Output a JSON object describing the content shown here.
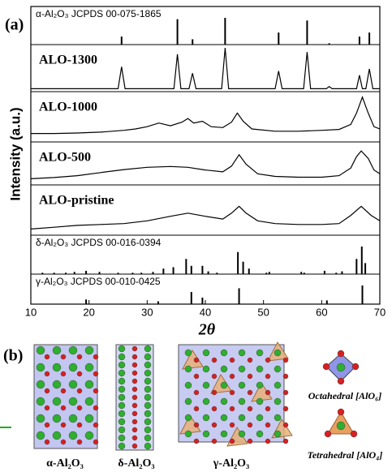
{
  "panel_labels": [
    "(a)",
    "(b)"
  ],
  "chart_data": {
    "type": "xrd-stack",
    "xlabel": "2θ",
    "ylabel": "Intensity (a.u.)",
    "xlim": [
      10,
      70
    ],
    "xticks": [
      10,
      20,
      30,
      40,
      50,
      60,
      70
    ],
    "ylim": [
      0,
      100
    ],
    "series": [
      {
        "name": "α-Al₂O₃ JCPDS 00-075-1865",
        "type": "stick",
        "color": "#000000",
        "x": [
          25.6,
          35.2,
          37.8,
          43.4,
          52.6,
          57.5,
          61.3,
          66.5,
          68.2
        ],
        "values": [
          30,
          95,
          20,
          100,
          45,
          90,
          5,
          30,
          45
        ]
      },
      {
        "name": "ALO-1300",
        "type": "line",
        "color": "#000000",
        "x": [
          10,
          25.0,
          25.6,
          26.2,
          34.6,
          35.2,
          35.8,
          37.2,
          37.8,
          38.4,
          42.8,
          43.4,
          44.0,
          52.0,
          52.6,
          53.2,
          56.9,
          57.5,
          58.1,
          60.8,
          61.3,
          61.8,
          66.0,
          66.5,
          67.0,
          67.6,
          68.2,
          68.8,
          70
        ],
        "values": [
          3,
          3,
          55,
          3,
          3,
          85,
          3,
          3,
          40,
          3,
          3,
          100,
          3,
          3,
          45,
          3,
          3,
          90,
          3,
          3,
          8,
          3,
          3,
          35,
          3,
          3,
          50,
          3,
          3
        ]
      },
      {
        "name": "ALO-1000",
        "type": "line",
        "color": "#000000",
        "x": [
          10,
          14,
          18,
          22,
          26,
          28,
          30,
          32,
          34,
          36,
          37,
          38,
          39.5,
          41,
          43,
          44.5,
          45.5,
          46.5,
          48,
          52,
          56,
          60,
          63,
          65,
          66,
          67,
          68,
          69,
          70
        ],
        "values": [
          15,
          15,
          16,
          18,
          22,
          25,
          30,
          38,
          32,
          40,
          48,
          38,
          42,
          30,
          28,
          40,
          60,
          42,
          25,
          20,
          20,
          22,
          24,
          35,
          60,
          95,
          60,
          30,
          25
        ]
      },
      {
        "name": "ALO-500",
        "type": "line",
        "color": "#000000",
        "x": [
          10,
          14,
          18,
          22,
          26,
          30,
          34,
          37,
          40,
          43,
          44.5,
          45.8,
          47,
          49,
          52,
          56,
          60,
          63,
          65,
          66,
          66.8,
          68,
          69,
          70
        ],
        "values": [
          12,
          15,
          20,
          28,
          36,
          42,
          44,
          42,
          35,
          30,
          45,
          75,
          50,
          25,
          18,
          16,
          16,
          20,
          40,
          70,
          85,
          65,
          35,
          25
        ]
      },
      {
        "name": "ALO-pristine",
        "type": "line",
        "color": "#000000",
        "x": [
          10,
          14,
          18,
          22,
          26,
          30,
          34,
          37,
          40,
          43,
          44.5,
          45.8,
          47,
          49,
          52,
          56,
          60,
          63,
          65,
          66.8,
          68.5,
          70
        ],
        "values": [
          10,
          14,
          18,
          20,
          22,
          28,
          38,
          45,
          38,
          32,
          45,
          60,
          45,
          28,
          22,
          20,
          20,
          22,
          40,
          60,
          40,
          28
        ]
      },
      {
        "name": "δ-Al₂O₃ JCPDS 00-016-0394",
        "type": "stick",
        "color": "#000000",
        "x": [
          12,
          14,
          16,
          17.5,
          19.5,
          21.8,
          25,
          27.5,
          29,
          31,
          32.8,
          34.5,
          36.7,
          37.6,
          39.5,
          40.5,
          42,
          45.6,
          46.5,
          47.5,
          50.5,
          51,
          56.5,
          57,
          60.5,
          62.5,
          63.5,
          66,
          66.9,
          67.5
        ],
        "values": [
          5,
          5,
          5,
          8,
          12,
          8,
          5,
          5,
          5,
          8,
          20,
          25,
          55,
          30,
          30,
          10,
          5,
          80,
          45,
          20,
          5,
          8,
          8,
          5,
          12,
          5,
          10,
          55,
          100,
          40
        ]
      },
      {
        "name": "γ-Al₂O₃ JCPDS 00-010-0425",
        "type": "stick",
        "color": "#000000",
        "x": [
          19.5,
          31.9,
          37.6,
          39.5,
          45.8,
          60.9,
          67
        ],
        "values": [
          25,
          15,
          65,
          35,
          85,
          20,
          100
        ]
      }
    ]
  },
  "panel_b": {
    "structures": [
      "α-Al₂O₃",
      "δ-Al₂O₃",
      "γ-Al₂O₃"
    ],
    "polyhedra": [
      "Octahedral [AlO₆]",
      "Tetrahedral [AlO₄]"
    ]
  }
}
